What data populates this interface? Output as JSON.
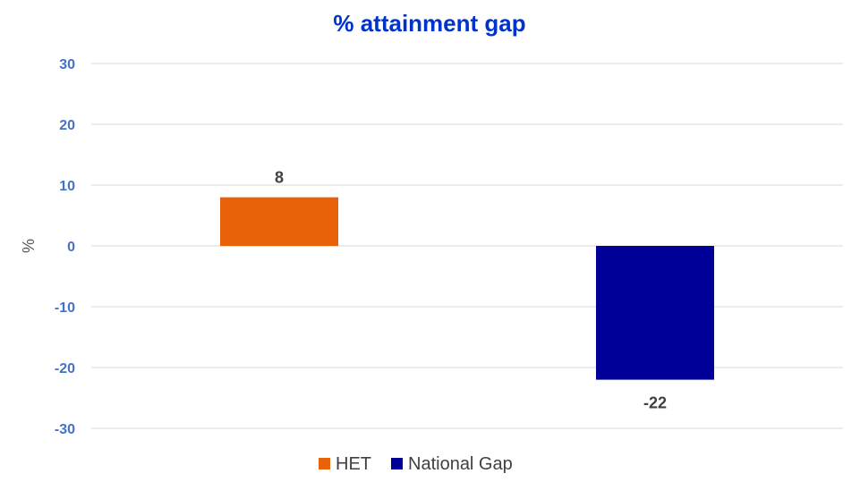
{
  "chart_data": {
    "type": "bar",
    "title": "% attainment gap",
    "xlabel": "",
    "ylabel": "%",
    "ylim": [
      -30,
      30
    ],
    "yticks": [
      30,
      20,
      10,
      0,
      -10,
      -20,
      -30
    ],
    "grid": true,
    "legend_position": "bottom",
    "series": [
      {
        "name": "HET",
        "value": 8,
        "label": "8",
        "color": "#e8620a"
      },
      {
        "name": "National Gap",
        "value": -22,
        "label": "-22",
        "color": "#000099"
      }
    ]
  }
}
